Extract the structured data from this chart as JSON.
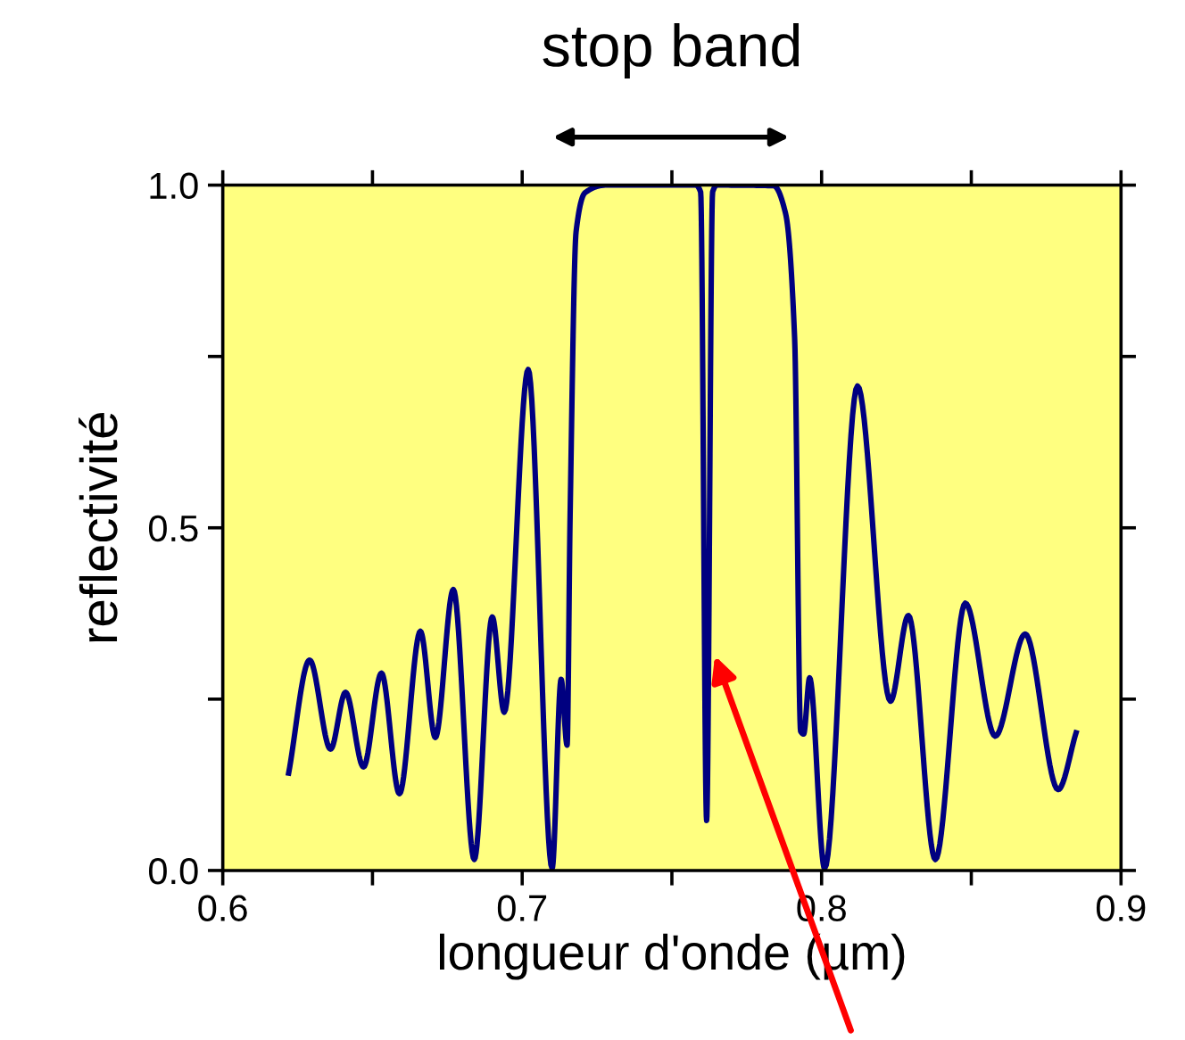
{
  "chart_data": {
    "type": "line",
    "title": "stop band",
    "xlabel": "longueur d'onde (µm)",
    "ylabel": "reflectivité",
    "x": [
      0.622,
      0.629,
      0.636,
      0.641,
      0.647,
      0.653,
      0.659,
      0.666,
      0.671,
      0.677,
      0.684,
      0.69,
      0.694,
      0.702,
      0.71,
      0.713,
      0.715,
      0.716,
      0.718,
      0.721,
      0.728,
      0.758,
      0.7596,
      0.7616,
      0.7636,
      0.765,
      0.784,
      0.788,
      0.791,
      0.793,
      0.794,
      0.796,
      0.801,
      0.812,
      0.823,
      0.829,
      0.838,
      0.848,
      0.858,
      0.868,
      0.879,
      0.885
    ],
    "series": [
      {
        "color": "#000080",
        "values": [
          0.142,
          0.307,
          0.177,
          0.26,
          0.151,
          0.288,
          0.112,
          0.349,
          0.194,
          0.41,
          0.016,
          0.37,
          0.231,
          0.731,
          0.003,
          0.279,
          0.183,
          0.516,
          0.932,
          0.989,
          1.0,
          1.0,
          0.99,
          0.073,
          0.99,
          1.0,
          0.999,
          0.958,
          0.776,
          0.203,
          0.199,
          0.281,
          0.003,
          0.707,
          0.247,
          0.372,
          0.016,
          0.39,
          0.196,
          0.345,
          0.118,
          0.201
        ]
      }
    ],
    "xlim": [
      0.6,
      0.9
    ],
    "ylim": [
      0.0,
      1.0
    ],
    "xticks": [
      0.6,
      {
        "value": 0.65,
        "label": null
      },
      0.7,
      {
        "value": 0.75,
        "label": null
      },
      0.8,
      {
        "value": 0.85,
        "label": null
      },
      0.9
    ],
    "yticks": [
      {
        "value": 0.0,
        "label": "0.0"
      },
      {
        "value": 0.25,
        "label": null
      },
      0.5,
      {
        "value": 0.75,
        "label": null
      },
      {
        "value": 1.0,
        "label": "1.0"
      }
    ],
    "grid": false,
    "legend": false,
    "marker": "none",
    "line_style": "solid"
  }
}
